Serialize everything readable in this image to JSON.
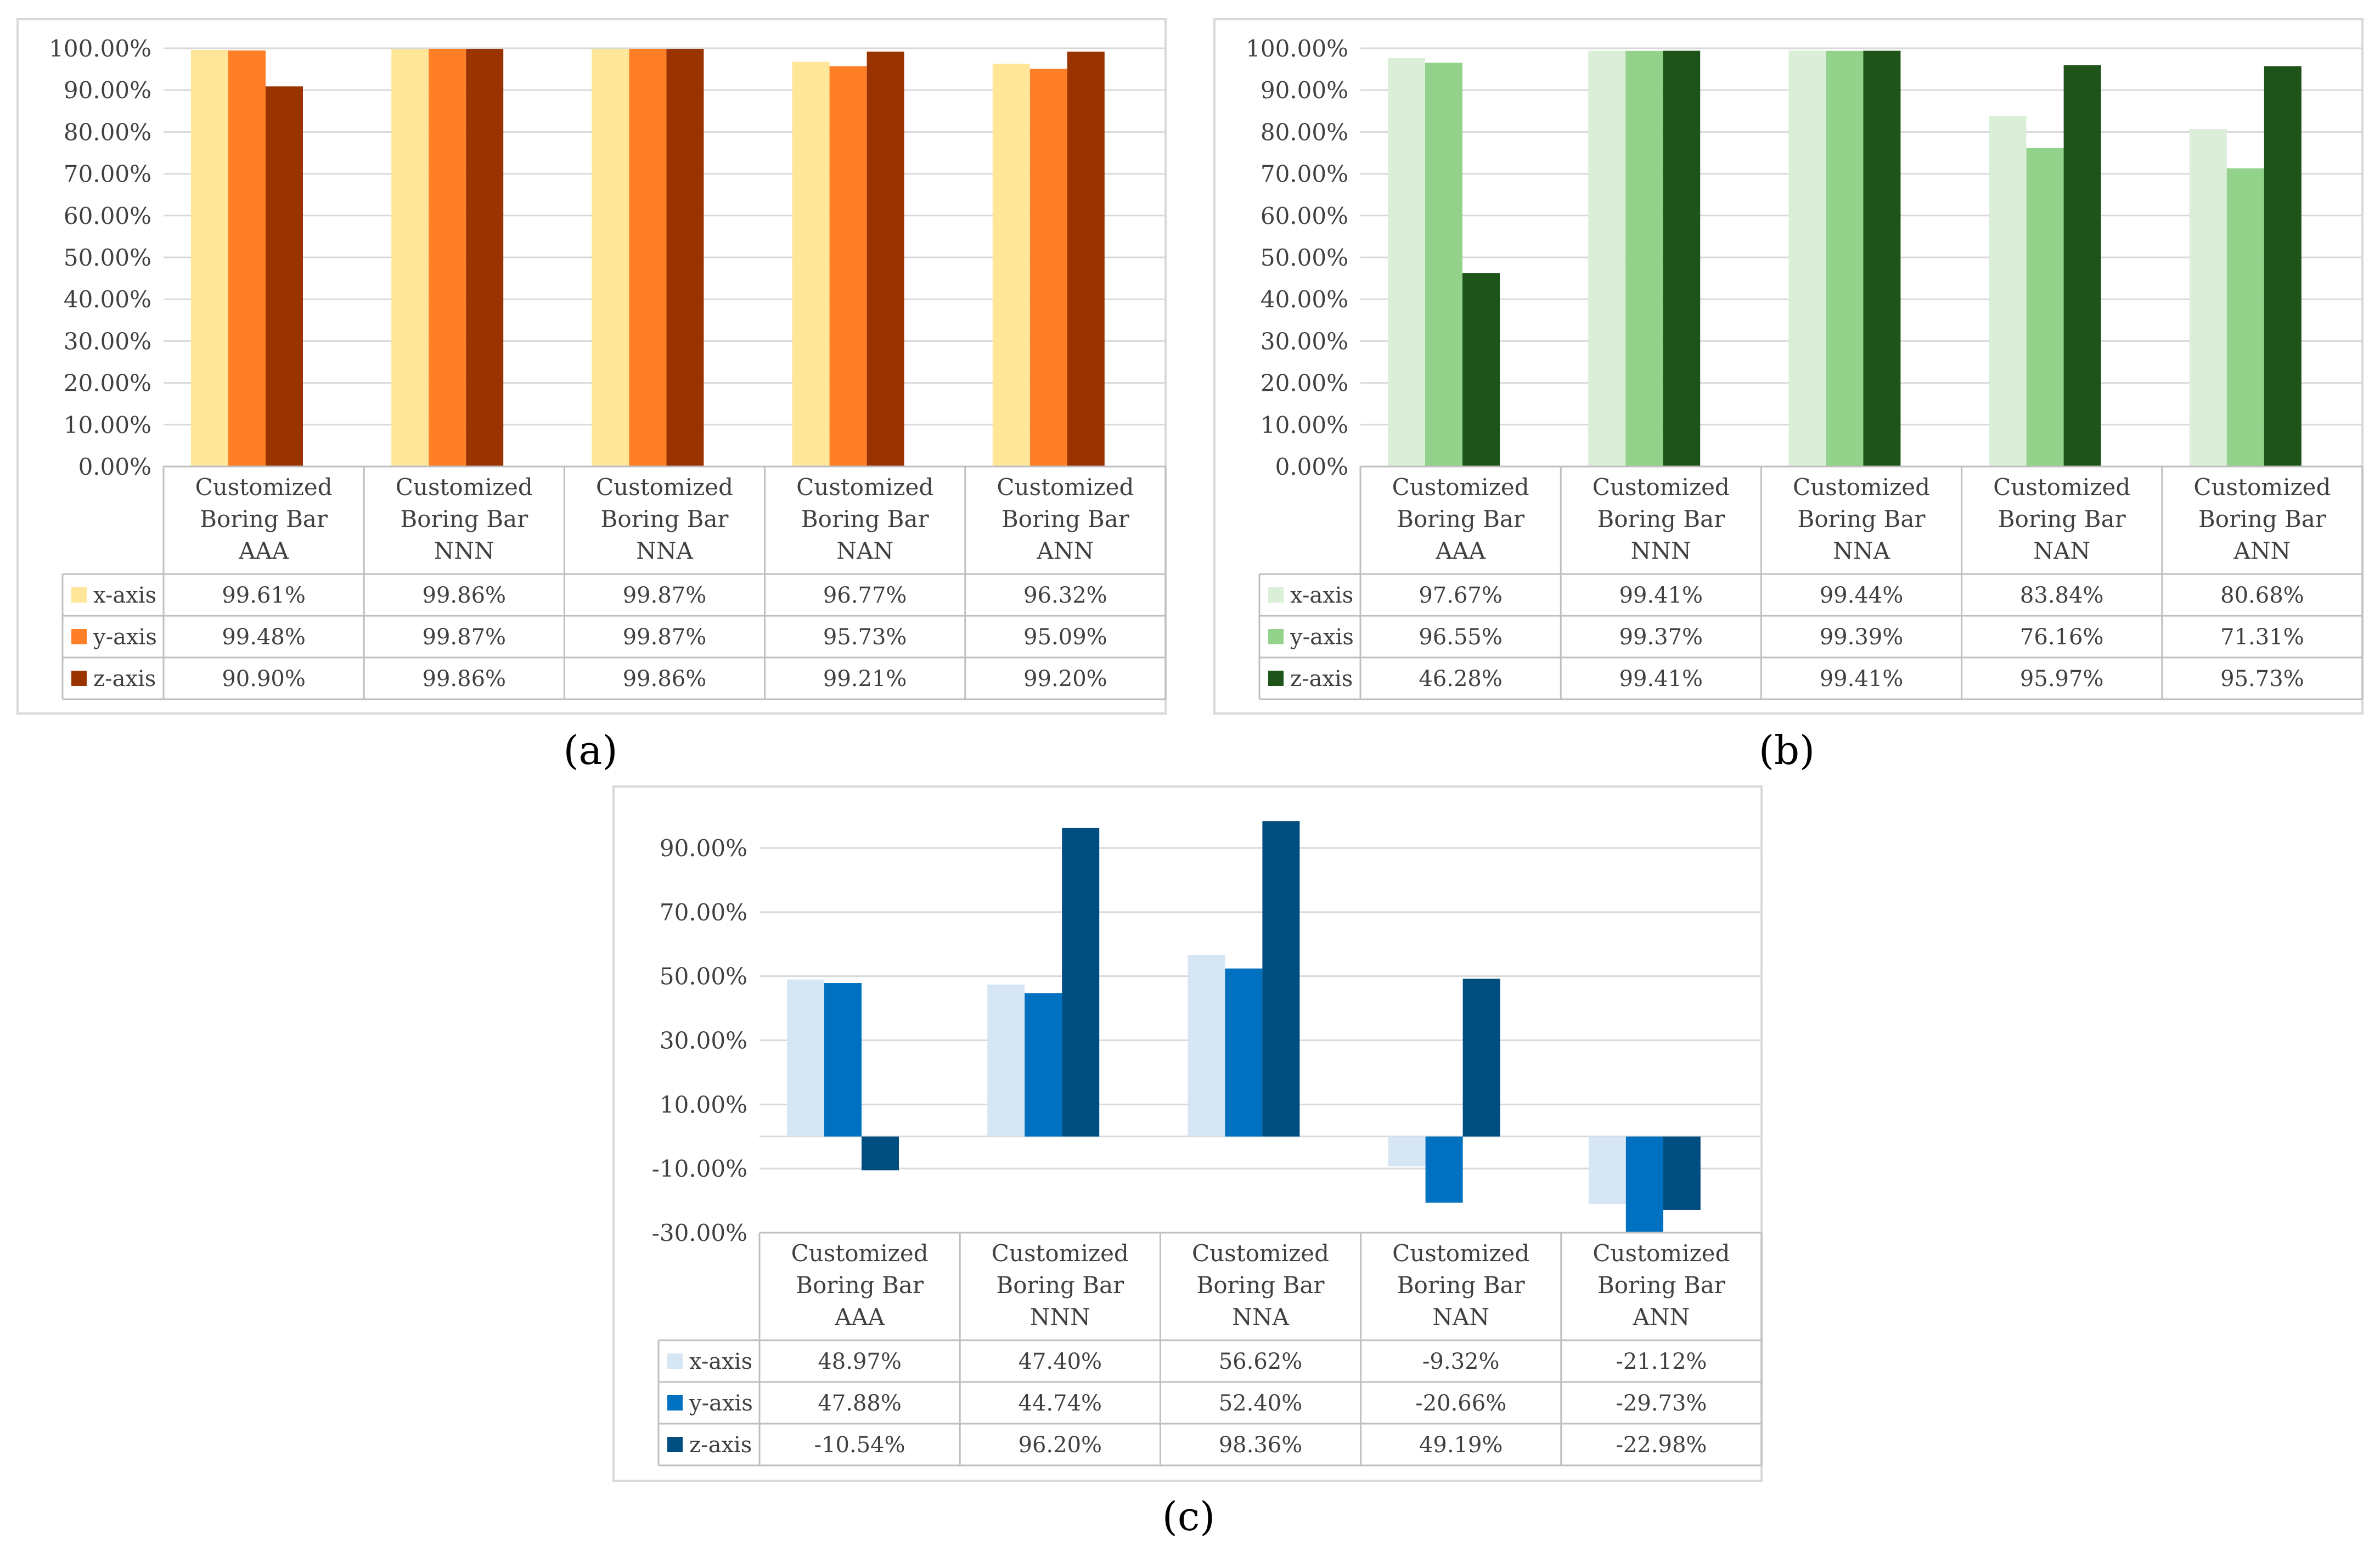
{
  "figure": {
    "panels": [
      {
        "caption": "(a)"
      },
      {
        "caption": "(b)"
      },
      {
        "caption": "(c)"
      }
    ]
  },
  "chart_data": [
    {
      "type": "bar",
      "panel": "(a)",
      "categories": [
        [
          "Customized",
          "Boring Bar",
          "AAA"
        ],
        [
          "Customized",
          "Boring Bar",
          "NNN"
        ],
        [
          "Customized",
          "Boring Bar",
          "NNA"
        ],
        [
          "Customized",
          "Boring Bar",
          "NAN"
        ],
        [
          "Customized",
          "Boring Bar",
          "ANN"
        ]
      ],
      "series": [
        {
          "name": "x-axis",
          "color": "#FFE699",
          "values": [
            99.61,
            99.86,
            99.87,
            96.77,
            96.32
          ],
          "labels": [
            "99.61%",
            "99.86%",
            "99.87%",
            "96.77%",
            "96.32%"
          ]
        },
        {
          "name": "y-axis",
          "color": "#FF7F27",
          "values": [
            99.48,
            99.87,
            99.87,
            95.73,
            95.09
          ],
          "labels": [
            "99.48%",
            "99.87%",
            "99.87%",
            "95.73%",
            "95.09%"
          ]
        },
        {
          "name": "z-axis",
          "color": "#993300",
          "values": [
            90.9,
            99.86,
            99.86,
            99.21,
            99.2
          ],
          "labels": [
            "90.90%",
            "99.86%",
            "99.86%",
            "99.21%",
            "99.20%"
          ]
        }
      ],
      "yticks": [
        0,
        10,
        20,
        30,
        40,
        50,
        60,
        70,
        80,
        90,
        100
      ],
      "ytick_labels": [
        "0.00%",
        "10.00%",
        "20.00%",
        "30.00%",
        "40.00%",
        "50.00%",
        "60.00%",
        "70.00%",
        "80.00%",
        "90.00%",
        "100.00%"
      ],
      "ylim": [
        0,
        100
      ],
      "grid": true,
      "legend": "data-table",
      "title": "",
      "xlabel": "",
      "ylabel": ""
    },
    {
      "type": "bar",
      "panel": "(b)",
      "categories": [
        [
          "Customized",
          "Boring Bar",
          "AAA"
        ],
        [
          "Customized",
          "Boring Bar",
          "NNN"
        ],
        [
          "Customized",
          "Boring Bar",
          "NNA"
        ],
        [
          "Customized",
          "Boring Bar",
          "NAN"
        ],
        [
          "Customized",
          "Boring Bar",
          "ANN"
        ]
      ],
      "series": [
        {
          "name": "x-axis",
          "color": "#DAEED8",
          "values": [
            97.67,
            99.41,
            99.44,
            83.84,
            80.68
          ],
          "labels": [
            "97.67%",
            "99.41%",
            "99.44%",
            "83.84%",
            "80.68%"
          ]
        },
        {
          "name": "y-axis",
          "color": "#92D28A",
          "values": [
            96.55,
            99.37,
            99.39,
            76.16,
            71.31
          ],
          "labels": [
            "96.55%",
            "99.37%",
            "99.39%",
            "76.16%",
            "71.31%"
          ]
        },
        {
          "name": "z-axis",
          "color": "#1E5319",
          "values": [
            46.28,
            99.41,
            99.41,
            95.97,
            95.73
          ],
          "labels": [
            "46.28%",
            "99.41%",
            "99.41%",
            "95.97%",
            "95.73%"
          ]
        }
      ],
      "yticks": [
        0,
        10,
        20,
        30,
        40,
        50,
        60,
        70,
        80,
        90,
        100
      ],
      "ytick_labels": [
        "0.00%",
        "10.00%",
        "20.00%",
        "30.00%",
        "40.00%",
        "50.00%",
        "60.00%",
        "70.00%",
        "80.00%",
        "90.00%",
        "100.00%"
      ],
      "ylim": [
        0,
        100
      ],
      "grid": true,
      "legend": "data-table",
      "title": "",
      "xlabel": "",
      "ylabel": ""
    },
    {
      "type": "bar",
      "panel": "(c)",
      "categories": [
        [
          "Customized",
          "Boring Bar",
          "AAA"
        ],
        [
          "Customized",
          "Boring Bar",
          "NNN"
        ],
        [
          "Customized",
          "Boring Bar",
          "NNA"
        ],
        [
          "Customized",
          "Boring Bar",
          "NAN"
        ],
        [
          "Customized",
          "Boring Bar",
          "ANN"
        ]
      ],
      "series": [
        {
          "name": "x-axis",
          "color": "#D6E6F4",
          "values": [
            48.97,
            47.4,
            56.62,
            -9.32,
            -21.12
          ],
          "labels": [
            "48.97%",
            "47.40%",
            "56.62%",
            "-9.32%",
            "-21.12%"
          ]
        },
        {
          "name": "y-axis",
          "color": "#0070C0",
          "values": [
            47.88,
            44.74,
            52.4,
            -20.66,
            -29.73
          ],
          "labels": [
            "47.88%",
            "44.74%",
            "52.40%",
            "-20.66%",
            "-29.73%"
          ]
        },
        {
          "name": "z-axis",
          "color": "#004E7F",
          "values": [
            -10.54,
            96.2,
            98.36,
            49.19,
            -22.98
          ],
          "labels": [
            "-10.54%",
            "96.20%",
            "98.36%",
            "49.19%",
            "-22.98%"
          ]
        }
      ],
      "yticks": [
        -30,
        -10,
        10,
        30,
        50,
        70,
        90
      ],
      "ytick_labels": [
        "-30.00%",
        "-10.00%",
        "10.00%",
        "30.00%",
        "50.00%",
        "70.00%",
        "90.00%"
      ],
      "ylim": [
        -30,
        100
      ],
      "grid": true,
      "legend": "data-table",
      "title": "",
      "xlabel": "",
      "ylabel": ""
    }
  ]
}
